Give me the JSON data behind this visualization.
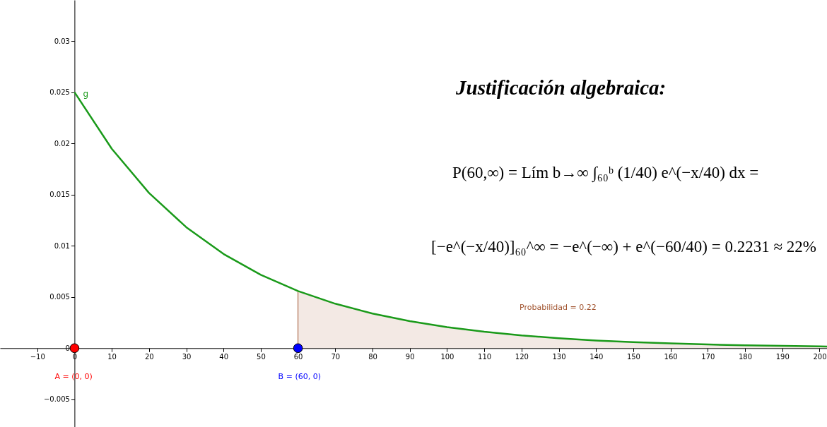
{
  "chart_data": {
    "type": "line",
    "title": "Justificación algebraica:",
    "subtitle": [
      "P(60,∞) = Lím b→∞ ∫₆₀ᵇ (1/40) e^(−x/40) dx =",
      "[−e^(−x/40)]₆₀^∞ = −e^(−∞) + e^(−60/40) = 0.2231 ≈ 22%"
    ],
    "xlim": [
      -20,
      202
    ],
    "ylim": [
      -0.0077,
      0.034
    ],
    "xticks": [
      -10,
      0,
      10,
      20,
      30,
      40,
      50,
      60,
      70,
      80,
      90,
      100,
      110,
      120,
      130,
      140,
      150,
      160,
      170,
      180,
      190,
      200
    ],
    "yticks": [
      -0.005,
      0,
      0.005,
      0.01,
      0.015,
      0.02,
      0.025,
      0.03
    ],
    "grid": false,
    "series": [
      {
        "type": "area",
        "name": "Probabilidad = 0.22",
        "color": "#a0522d",
        "x": [
          60,
          60,
          70,
          80,
          90,
          100,
          110,
          120,
          130,
          140,
          150,
          160,
          170,
          180,
          190,
          200,
          202
        ],
        "values": [
          0,
          0.00558,
          0.00434,
          0.00338,
          0.00264,
          0.00205,
          0.0016,
          0.00124,
          0.00097,
          0.00075,
          0.00059,
          0.00046,
          0.00036,
          0.00028,
          0.00022,
          0.00017,
          0.00016
        ]
      },
      {
        "type": "line",
        "name": "g",
        "color": "#1a9a1a",
        "x": [
          0,
          10,
          20,
          30,
          40,
          50,
          60,
          70,
          80,
          90,
          100,
          110,
          120,
          130,
          140,
          150,
          160,
          170,
          180,
          190,
          200,
          202
        ],
        "values": [
          0.025,
          0.01947,
          0.01516,
          0.01181,
          0.0092,
          0.00716,
          0.00558,
          0.00434,
          0.00338,
          0.00264,
          0.00205,
          0.0016,
          0.00124,
          0.00097,
          0.00075,
          0.00059,
          0.00046,
          0.00036,
          0.00028,
          0.00022,
          0.00017,
          0.00016
        ]
      },
      {
        "type": "scatter",
        "marker": "circle",
        "colors": [
          "#ff0000",
          "#0000ff"
        ],
        "x": [
          0,
          60
        ],
        "values": [
          0,
          0
        ]
      }
    ],
    "annotations": [
      "A = (0, 0)",
      "B = (60, 0)"
    ]
  }
}
